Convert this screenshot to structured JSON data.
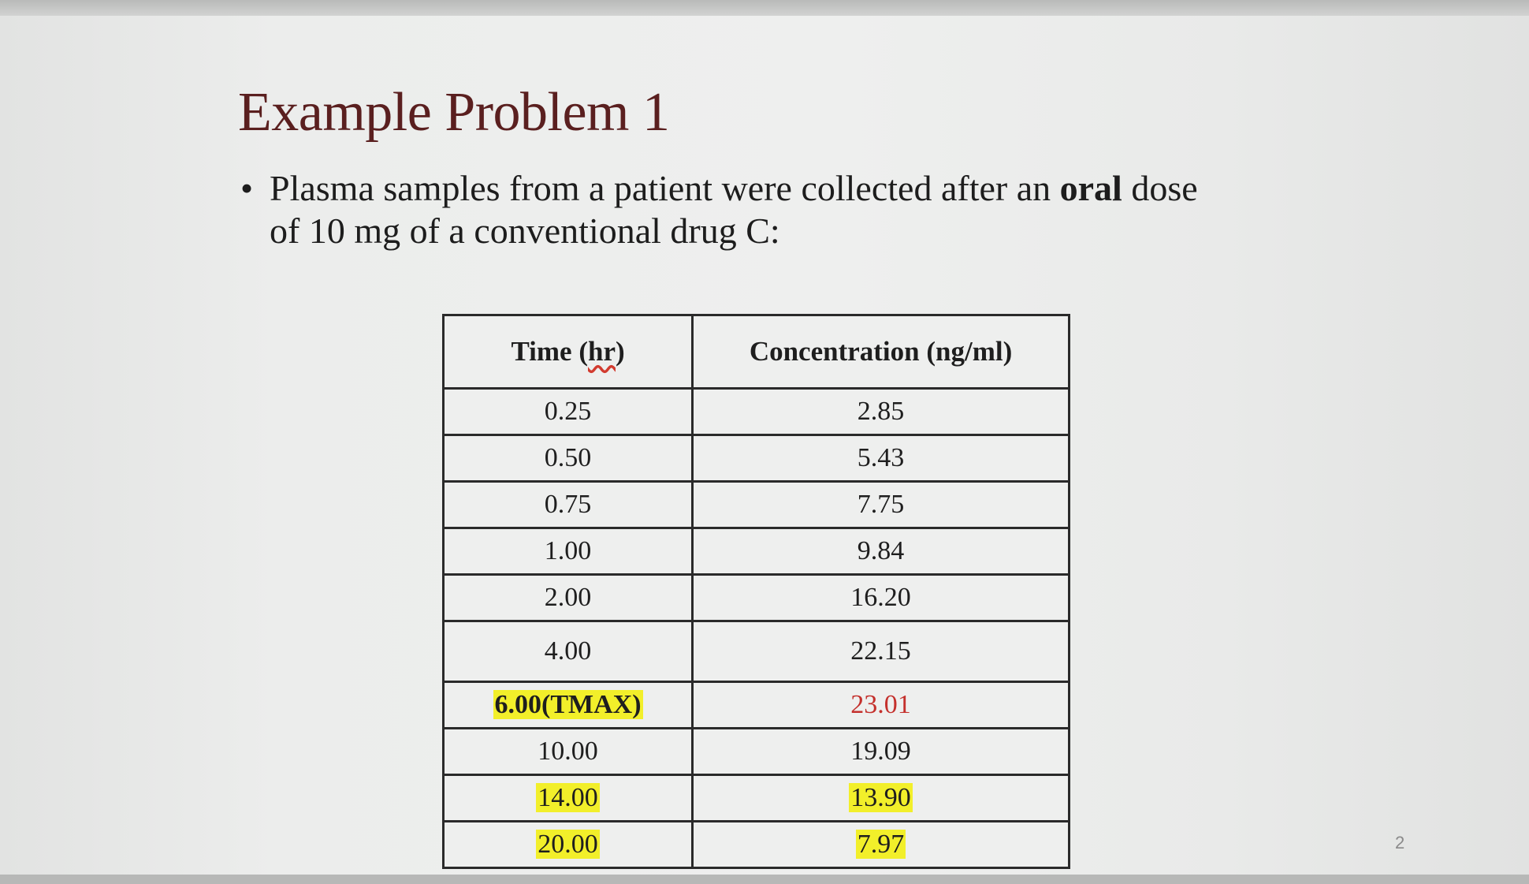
{
  "slide": {
    "title": "Example Problem 1",
    "bullet_symbol": "•",
    "bullet_text_before": "Plasma samples from a patient were collected after an ",
    "bullet_text_bold": "oral",
    "bullet_text_after": " dose of 10 mg of a conventional drug C:",
    "page_number": "2"
  },
  "table": {
    "header_time_prefix": "Time (",
    "header_time_unit": "hr",
    "header_time_suffix": ")",
    "header_concentration": "Concentration (ng/ml)",
    "rows": [
      {
        "time": "0.25",
        "concentration": "2.85"
      },
      {
        "time": "0.50",
        "concentration": "5.43"
      },
      {
        "time": "0.75",
        "concentration": "7.75"
      },
      {
        "time": "1.00",
        "concentration": "9.84"
      },
      {
        "time": "2.00",
        "concentration": "16.20"
      },
      {
        "time": "4.00",
        "concentration": "22.15"
      },
      {
        "time": "6.00(TMAX)",
        "concentration": "23.01"
      },
      {
        "time": "10.00",
        "concentration": "19.09"
      },
      {
        "time": "14.00",
        "concentration": "13.90"
      },
      {
        "time": "20.00",
        "concentration": "7.97"
      }
    ]
  },
  "colors": {
    "title": "#5a1f1f",
    "highlight": "#f2ef2a",
    "tmax_concentration": "#c4302c"
  }
}
